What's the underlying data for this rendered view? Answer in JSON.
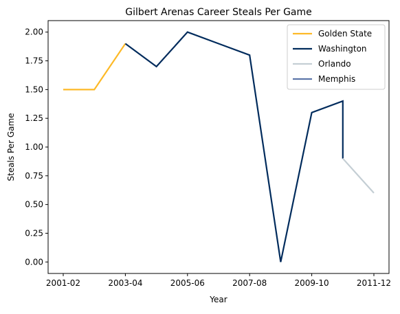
{
  "chart_data": {
    "type": "line",
    "title": "Gilbert Arenas Career Steals Per Game",
    "xlabel": "Year",
    "ylabel": "Steals Per Game",
    "ylim": [
      -0.1,
      2.1
    ],
    "yticks": [
      0.0,
      0.25,
      0.5,
      0.75,
      1.0,
      1.25,
      1.5,
      1.75,
      2.0
    ],
    "ytick_labels": [
      "0.00",
      "0.25",
      "0.50",
      "0.75",
      "1.00",
      "1.25",
      "1.50",
      "1.75",
      "2.00"
    ],
    "x_seasons": [
      "2001-02",
      "2002-03",
      "2003-04",
      "2004-05",
      "2005-06",
      "2006-07",
      "2007-08",
      "2008-09",
      "2009-10",
      "2010-11",
      "2011-12"
    ],
    "xtick_labels": [
      "2001-02",
      "2003-04",
      "2005-06",
      "2007-08",
      "2009-10",
      "2011-12"
    ],
    "legend_position": "top-right",
    "series": [
      {
        "name": "Golden State",
        "color": "#FDB927",
        "points": [
          [
            0,
            1.5
          ],
          [
            1,
            1.5
          ],
          [
            2,
            1.9
          ]
        ]
      },
      {
        "name": "Washington",
        "color": "#002B5C",
        "points": [
          [
            2,
            1.9
          ],
          [
            3,
            1.7
          ],
          [
            4,
            2.0
          ],
          [
            5,
            1.9
          ],
          [
            6,
            1.8
          ],
          [
            7,
            0.0
          ],
          [
            8,
            1.3
          ],
          [
            9,
            1.4
          ],
          [
            9,
            0.9
          ]
        ]
      },
      {
        "name": "Orlando",
        "color": "#C4CED4",
        "points": [
          [
            9,
            0.9
          ],
          [
            10,
            0.6
          ]
        ]
      },
      {
        "name": "Memphis",
        "color": "#5D76A9",
        "points": []
      }
    ]
  }
}
